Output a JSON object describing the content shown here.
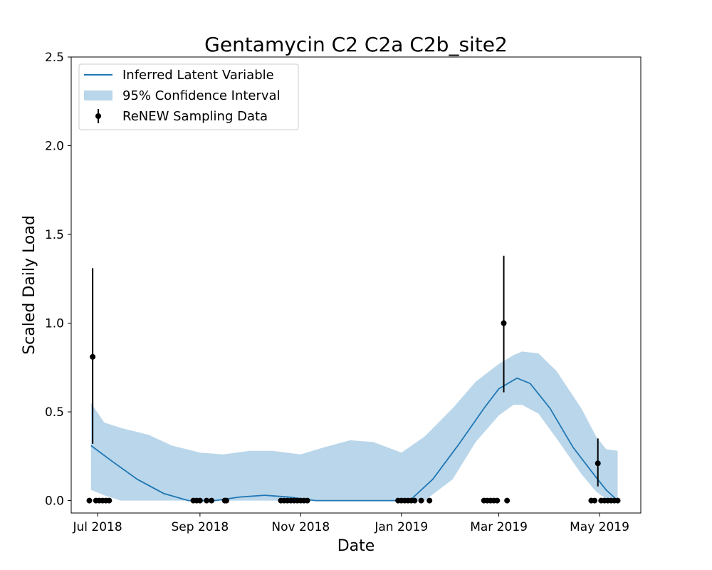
{
  "chart_data": {
    "type": "line",
    "title": "Gentamycin C2 C2a C2b_site2",
    "xlabel": "Date",
    "ylabel": "Scaled Daily Load",
    "xlim": [
      "2018-06-15",
      "2019-05-26"
    ],
    "ylim": [
      -0.07,
      2.5
    ],
    "x_ticks": [
      {
        "date": "2018-07-01",
        "label": "Jul 2018"
      },
      {
        "date": "2018-09-01",
        "label": "Sep 2018"
      },
      {
        "date": "2018-11-01",
        "label": "Nov 2018"
      },
      {
        "date": "2019-01-01",
        "label": "Jan 2019"
      },
      {
        "date": "2019-03-01",
        "label": "Mar 2019"
      },
      {
        "date": "2019-05-01",
        "label": "May 2019"
      }
    ],
    "y_ticks": [
      0.0,
      0.5,
      1.0,
      1.5,
      2.0,
      2.5
    ],
    "y_tick_labels": [
      "0.0",
      "0.5",
      "1.0",
      "1.5",
      "2.0",
      "2.5"
    ],
    "grid": false,
    "legend_placement": "top-left",
    "legend": [
      "Inferred Latent Variable",
      "95% Confidence Interval",
      "ReNEW Sampling Data"
    ],
    "colors": {
      "line": "#1f77b4",
      "band": "#bad6ea",
      "points": "#000000"
    },
    "series": [
      {
        "name": "Inferred Latent Variable",
        "type": "line",
        "x": [
          "2018-06-27",
          "2018-07-10",
          "2018-07-25",
          "2018-08-10",
          "2018-08-25",
          "2018-09-10",
          "2018-09-25",
          "2018-10-10",
          "2018-10-25",
          "2018-11-10",
          "2018-12-01",
          "2018-12-20",
          "2019-01-01",
          "2019-01-06",
          "2019-01-20",
          "2019-02-05",
          "2019-02-20",
          "2019-03-01",
          "2019-03-12",
          "2019-03-20",
          "2019-04-01",
          "2019-04-15",
          "2019-04-29",
          "2019-05-05",
          "2019-05-12"
        ],
        "y": [
          0.31,
          0.22,
          0.12,
          0.04,
          0.0,
          0.0,
          0.02,
          0.03,
          0.02,
          0.0,
          0.0,
          0.0,
          0.0,
          0.0,
          0.12,
          0.32,
          0.52,
          0.63,
          0.69,
          0.66,
          0.52,
          0.3,
          0.13,
          0.06,
          0.0
        ]
      },
      {
        "name": "95% Confidence Interval",
        "type": "area",
        "x": [
          "2018-06-27",
          "2018-07-05",
          "2018-07-15",
          "2018-08-01",
          "2018-08-15",
          "2018-09-01",
          "2018-09-15",
          "2018-10-01",
          "2018-10-15",
          "2018-11-01",
          "2018-11-15",
          "2018-12-01",
          "2018-12-15",
          "2019-01-01",
          "2019-01-15",
          "2019-02-01",
          "2019-02-15",
          "2019-03-01",
          "2019-03-10",
          "2019-03-15",
          "2019-03-25",
          "2019-04-05",
          "2019-04-20",
          "2019-04-29",
          "2019-05-05",
          "2019-05-12"
        ],
        "upper": [
          0.55,
          0.44,
          0.41,
          0.37,
          0.31,
          0.27,
          0.26,
          0.28,
          0.28,
          0.26,
          0.3,
          0.34,
          0.33,
          0.27,
          0.36,
          0.52,
          0.67,
          0.77,
          0.82,
          0.84,
          0.83,
          0.73,
          0.52,
          0.36,
          0.29,
          0.28
        ],
        "lower": [
          0.06,
          0.03,
          0.0,
          0.0,
          0.0,
          0.0,
          0.0,
          0.0,
          0.0,
          0.0,
          0.0,
          0.0,
          0.0,
          0.0,
          0.0,
          0.12,
          0.33,
          0.48,
          0.54,
          0.54,
          0.49,
          0.35,
          0.15,
          0.05,
          0.01,
          0.0
        ]
      },
      {
        "name": "ReNEW Sampling Data",
        "type": "scatter",
        "x": [
          "2018-06-26",
          "2018-06-28",
          "2018-06-30",
          "2018-07-02",
          "2018-07-04",
          "2018-07-06",
          "2018-07-08",
          "2018-08-28",
          "2018-08-30",
          "2018-09-01",
          "2018-09-05",
          "2018-09-08",
          "2018-09-16",
          "2018-09-17",
          "2018-10-20",
          "2018-10-22",
          "2018-10-24",
          "2018-10-26",
          "2018-10-28",
          "2018-10-30",
          "2018-11-01",
          "2018-11-03",
          "2018-11-05",
          "2018-12-30",
          "2019-01-01",
          "2019-01-03",
          "2019-01-05",
          "2019-01-07",
          "2019-01-09",
          "2019-01-13",
          "2019-01-18",
          "2019-02-20",
          "2019-02-22",
          "2019-02-24",
          "2019-02-26",
          "2019-02-28",
          "2019-03-04",
          "2019-03-06",
          "2019-04-26",
          "2019-04-28",
          "2019-04-30",
          "2019-05-02",
          "2019-05-04",
          "2019-05-06",
          "2019-05-08",
          "2019-05-10",
          "2019-05-12"
        ],
        "y": [
          0,
          0.81,
          0,
          0,
          0,
          0,
          0,
          0,
          0,
          0,
          0,
          0,
          0,
          0,
          0,
          0,
          0,
          0,
          0,
          0,
          0,
          0,
          0,
          0,
          0,
          0,
          0,
          0,
          0,
          0,
          0,
          0,
          0,
          0,
          0,
          0,
          1.0,
          0,
          0,
          0,
          0.21,
          0,
          0,
          0,
          0,
          0,
          0
        ],
        "error_lower": [
          null,
          0.32,
          null,
          null,
          null,
          null,
          null,
          null,
          null,
          null,
          null,
          null,
          null,
          null,
          null,
          null,
          null,
          null,
          null,
          null,
          null,
          null,
          null,
          null,
          null,
          null,
          null,
          null,
          null,
          null,
          null,
          null,
          null,
          null,
          null,
          null,
          0.61,
          null,
          null,
          null,
          0.08,
          null,
          null,
          null,
          null,
          null,
          null
        ],
        "error_upper": [
          null,
          1.31,
          null,
          null,
          null,
          null,
          null,
          null,
          null,
          null,
          null,
          null,
          null,
          null,
          null,
          null,
          null,
          null,
          null,
          null,
          null,
          null,
          null,
          null,
          null,
          null,
          null,
          null,
          null,
          null,
          null,
          null,
          null,
          null,
          null,
          null,
          1.38,
          null,
          null,
          null,
          0.35,
          null,
          null,
          null,
          null,
          null,
          null
        ]
      }
    ]
  }
}
